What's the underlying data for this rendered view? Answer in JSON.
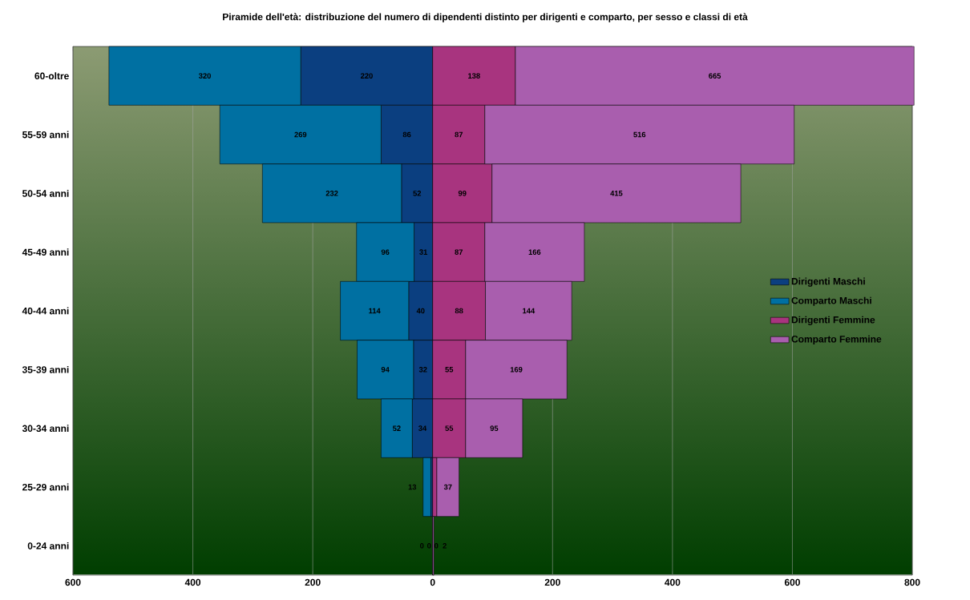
{
  "chart_data": {
    "type": "bar",
    "orientation": "horizontal",
    "title": "Piramide dell'età: distribuzione del numero di dipendenti distinto per dirigenti e comparto, per sesso e classi di età",
    "categories": [
      "60-oltre",
      "55-59 anni",
      "50-54 anni",
      "45-49 anni",
      "40-44 anni",
      "35-39 anni",
      "30-34 anni",
      "25-29 anni",
      "0-24 anni"
    ],
    "series": [
      {
        "name": "Dirigenti Maschi",
        "color": "#0b3f80",
        "values": [
          220,
          86,
          52,
          31,
          40,
          32,
          34,
          3,
          0
        ],
        "base": [
          -220,
          -86,
          -52,
          -31,
          -40,
          -32,
          -34,
          -3,
          null
        ],
        "value_labels": [
          "220",
          "86",
          "52",
          "31",
          "40",
          "32",
          "34",
          null,
          "0"
        ]
      },
      {
        "name": "Comparto Maschi",
        "color": "#0070a2",
        "values": [
          320,
          269,
          232,
          96,
          114,
          94,
          52,
          13,
          0
        ],
        "base": [
          -540,
          -355,
          -284,
          -127,
          -154,
          -126,
          -86,
          -16,
          null
        ],
        "value_labels": [
          "320",
          "269",
          "232",
          "96",
          "114",
          "94",
          "52",
          "13",
          "0"
        ]
      },
      {
        "name": "Dirigenti Femmine",
        "color": "#a8347f",
        "values": [
          138,
          87,
          99,
          87,
          88,
          55,
          55,
          7,
          0
        ],
        "base": [
          0,
          0,
          0,
          0,
          0,
          0,
          0,
          0,
          null
        ],
        "value_labels": [
          "138",
          "87",
          "99",
          "87",
          "88",
          "55",
          "55",
          null,
          "0"
        ]
      },
      {
        "name": "Comparto Femmine",
        "color": "#a95eae",
        "values": [
          665,
          516,
          415,
          166,
          144,
          169,
          95,
          37,
          2
        ],
        "base": [
          138,
          87,
          99,
          87,
          88,
          55,
          55,
          7,
          0
        ],
        "value_labels": [
          "665",
          "516",
          "415",
          "166",
          "144",
          "169",
          "95",
          "37",
          "2"
        ]
      }
    ],
    "xlim": [
      -600,
      800
    ],
    "xticks": [
      {
        "value": -600,
        "label": "600"
      },
      {
        "value": -400,
        "label": "400"
      },
      {
        "value": -200,
        "label": "200"
      },
      0,
      200,
      400,
      600,
      800
    ],
    "grid": "x",
    "legend": "right"
  }
}
